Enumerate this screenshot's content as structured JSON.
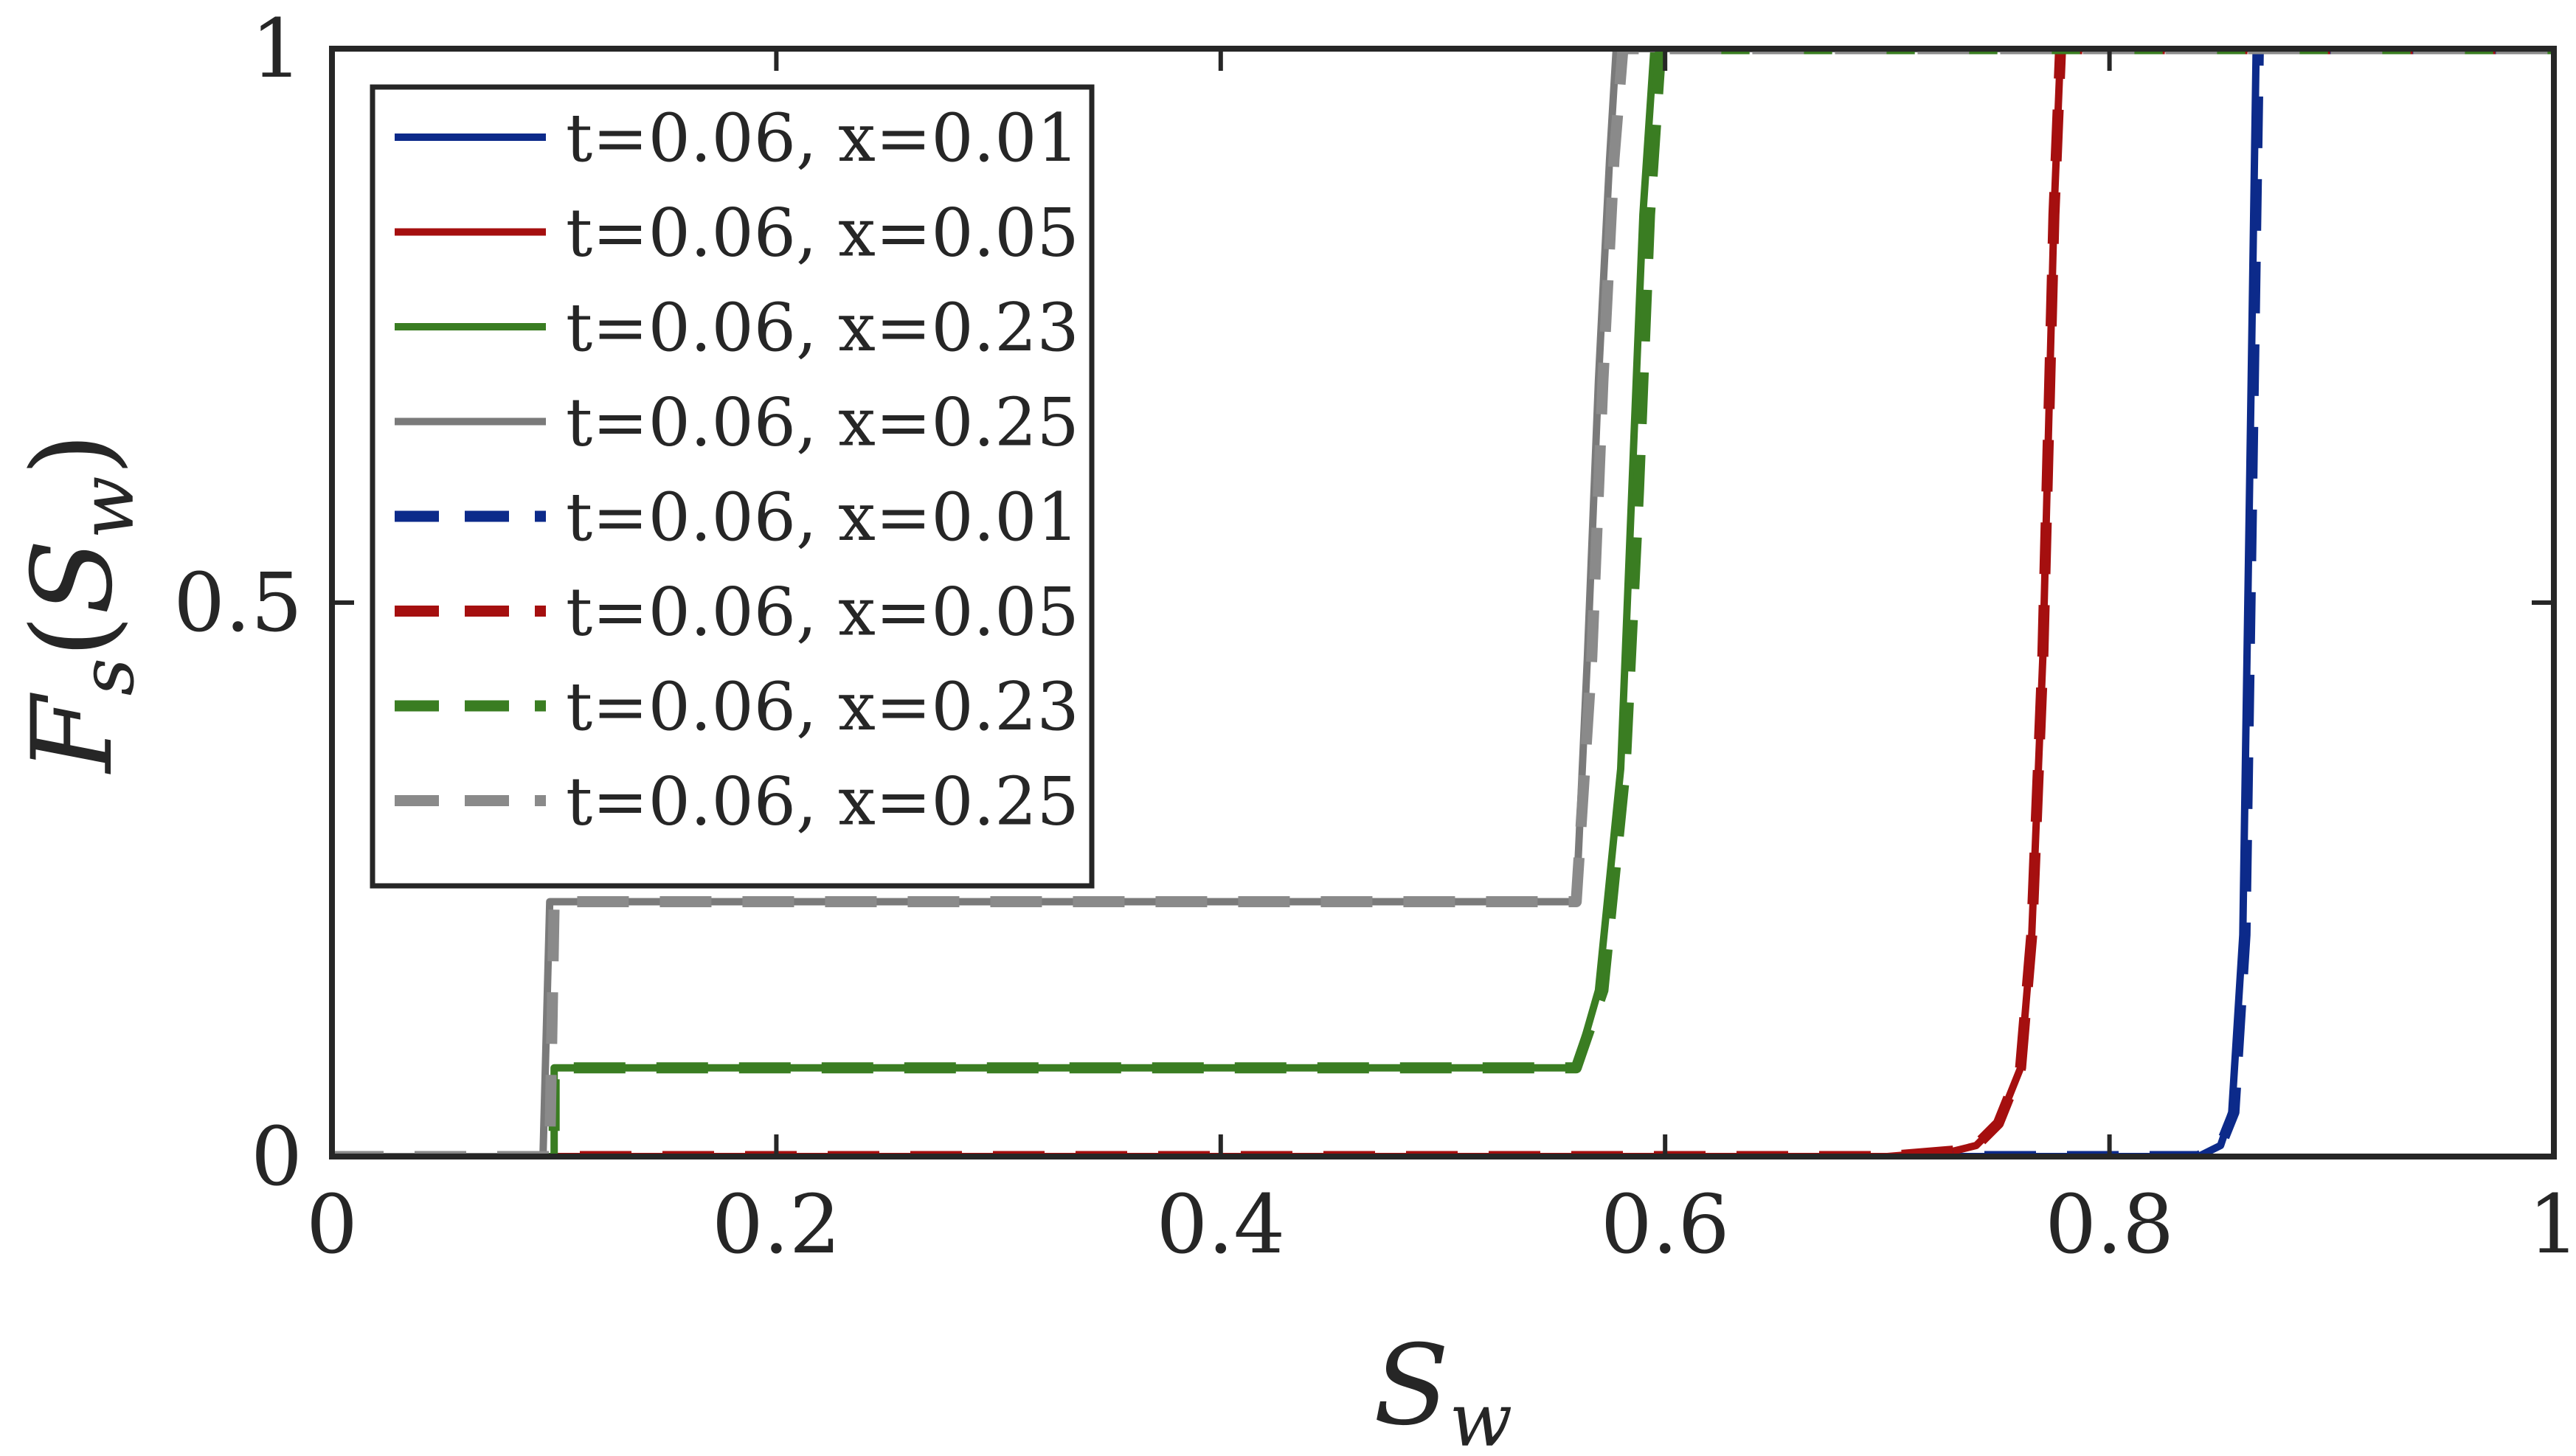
{
  "chart_data": {
    "type": "line",
    "xlabel": "S_w",
    "ylabel": "F_s(S_w)",
    "xlim": [
      0,
      1
    ],
    "ylim": [
      0,
      1
    ],
    "xticks": [
      {
        "value": 0,
        "label": "0"
      },
      {
        "value": 0.2,
        "label": "0.2"
      },
      {
        "value": 0.4,
        "label": "0.4"
      },
      {
        "value": 0.6,
        "label": "0.6"
      },
      {
        "value": 0.8,
        "label": "0.8"
      },
      {
        "value": 1,
        "label": "1"
      }
    ],
    "yticks": [
      {
        "value": 0,
        "label": "0"
      },
      {
        "value": 0.5,
        "label": "0.5"
      },
      {
        "value": 1,
        "label": "1"
      }
    ],
    "grid": false,
    "legend_position": "top-left",
    "series": [
      {
        "name": "t=0.06, x=0.01",
        "style": "solid",
        "color": "#0c2a8a",
        "x": [
          0,
          0.72,
          0.8,
          0.84,
          0.85,
          0.855,
          0.86,
          0.863,
          0.866,
          1
        ],
        "y": [
          0,
          0,
          0,
          0,
          0.01,
          0.04,
          0.2,
          0.6,
          1,
          1
        ]
      },
      {
        "name": "t=0.06, x=0.05",
        "style": "solid",
        "color": "#a50f0f",
        "x": [
          0,
          0.7,
          0.73,
          0.74,
          0.75,
          0.76,
          0.765,
          0.77,
          0.775,
          0.778,
          1
        ],
        "y": [
          0,
          0,
          0.005,
          0.01,
          0.03,
          0.08,
          0.2,
          0.45,
          0.85,
          1,
          1
        ]
      },
      {
        "name": "t=0.06, x=0.23",
        "style": "solid",
        "color": "#3a7d22",
        "x": [
          0,
          0.1,
          0.1,
          0.56,
          0.57,
          0.58,
          0.585,
          0.59,
          0.595,
          1
        ],
        "y": [
          0,
          0,
          0.08,
          0.08,
          0.15,
          0.35,
          0.6,
          0.85,
          1,
          1
        ]
      },
      {
        "name": "t=0.06, x=0.25",
        "style": "solid",
        "color": "#7a7a7a",
        "x": [
          0,
          0.095,
          0.098,
          0.56,
          0.565,
          0.57,
          0.575,
          0.578,
          0.58,
          1
        ],
        "y": [
          0,
          0,
          0.23,
          0.23,
          0.45,
          0.7,
          0.9,
          1,
          1,
          1
        ]
      },
      {
        "name": "t=0.06, x=0.01",
        "style": "dashed",
        "color": "#0c2a8a",
        "x": [
          0,
          0.72,
          0.8,
          0.84,
          0.85,
          0.856,
          0.861,
          0.864,
          0.867,
          1
        ],
        "y": [
          0,
          0,
          0,
          0,
          0.01,
          0.04,
          0.2,
          0.6,
          1,
          1
        ]
      },
      {
        "name": "t=0.06, x=0.05",
        "style": "dashed",
        "color": "#a50f0f",
        "x": [
          0,
          0.7,
          0.73,
          0.74,
          0.75,
          0.76,
          0.765,
          0.77,
          0.775,
          0.778,
          1
        ],
        "y": [
          0,
          0,
          0.005,
          0.01,
          0.03,
          0.08,
          0.2,
          0.45,
          0.85,
          1,
          1
        ]
      },
      {
        "name": "t=0.06, x=0.23",
        "style": "dashed",
        "color": "#3a7d22",
        "x": [
          0,
          0.1,
          0.1,
          0.56,
          0.572,
          0.582,
          0.588,
          0.593,
          0.598,
          1
        ],
        "y": [
          0,
          0,
          0.08,
          0.08,
          0.15,
          0.35,
          0.6,
          0.85,
          1,
          1
        ]
      },
      {
        "name": "t=0.06, x=0.25",
        "style": "dashed",
        "color": "#8a8a8a",
        "x": [
          0,
          0.098,
          0.1,
          0.56,
          0.567,
          0.572,
          0.577,
          0.581,
          0.585,
          1
        ],
        "y": [
          0,
          0,
          0.23,
          0.23,
          0.45,
          0.7,
          0.9,
          1,
          1,
          1
        ]
      }
    ]
  }
}
